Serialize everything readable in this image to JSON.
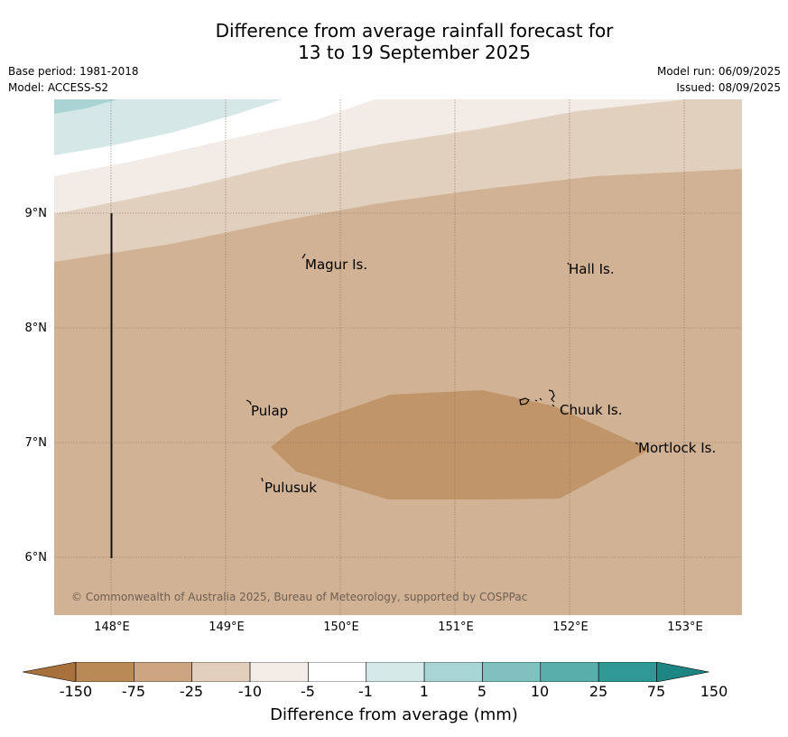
{
  "header": {
    "title_line1": "Difference from average rainfall forecast for",
    "title_line2": "13 to 19 September 2025",
    "base_period": "Base period: 1981-2018",
    "model": "Model: ACCESS-S2",
    "model_run": "Model run: 06/09/2025",
    "issued": "Issued: 08/09/2025"
  },
  "map": {
    "lat_labels": [
      "9°N",
      "8°N",
      "7°N",
      "6°N"
    ],
    "lon_labels": [
      "148°E",
      "149°E",
      "150°E",
      "151°E",
      "152°E",
      "153°E"
    ],
    "places": [
      "Magur Is.",
      "Hall Is.",
      "Pulap",
      "Chuuk Is.",
      "Mortlock Is.",
      "Pulusuk"
    ],
    "copyright": "© Commonwealth of Australia 2025, Bureau of Meteorology, supported by COSPPac"
  },
  "colorbar": {
    "ticks": [
      "-150",
      "-75",
      "-25",
      "-10",
      "-5",
      "-1",
      "1",
      "5",
      "10",
      "25",
      "75",
      "150"
    ],
    "label": "Difference from average (mm)",
    "colors": [
      "#a8713c",
      "#b98956",
      "#cda583",
      "#e2cfbc",
      "#f3ece7",
      "#ffffff",
      "#d5e9e8",
      "#a9d5d4",
      "#7fc1be",
      "#57aeab",
      "#2f9996",
      "#1d8582"
    ]
  }
}
